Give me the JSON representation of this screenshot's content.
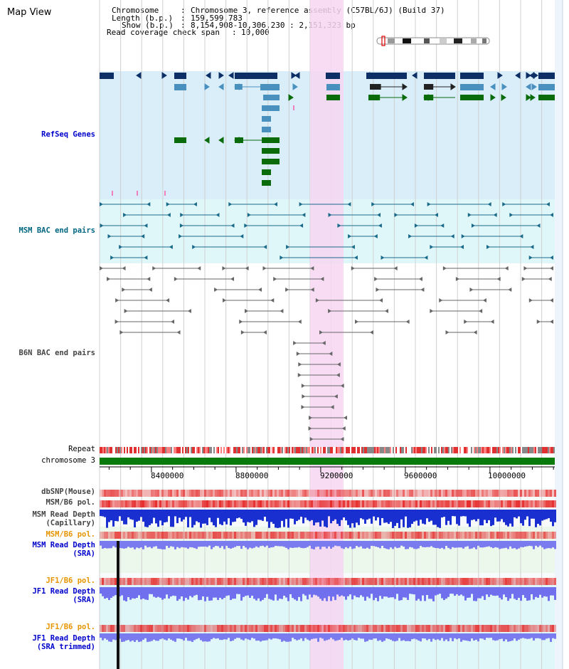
{
  "title": "Map View",
  "header": {
    "chromosome_label": "Chromosome",
    "chromosome_value": "Chromosome 3, reference assembly (C57BL/6J) (Build 37)",
    "length_label": "Length (b.p.)",
    "length_value": "159,599,783",
    "show_label": "Show (b.p.)",
    "show_value": "8,154,908-10,306,230 : 2,151,323 bp",
    "coverage_label": "Read coverage check span",
    "coverage_value": "10,000"
  },
  "tracks": {
    "refseq": "RefSeq Genes",
    "msm_bac": "MSM BAC end pairs",
    "b6n_bac": "B6N BAC end pairs",
    "repeat": "Repeat",
    "chromosome": "chromosome 3",
    "dbsnp": "dbSNP(Mouse)",
    "msm_pol_1": "MSM/B6 pol.",
    "msm_depth_cap_1": "MSM Read Depth",
    "msm_depth_cap_2": "(Capillary)",
    "msm_pol_2": "MSM/B6 pol.",
    "msm_depth_sra_1": "MSM Read Depth",
    "msm_depth_sra_2": "(SRA)",
    "jf1_pol_1": "JF1/B6 pol.",
    "jf1_depth_sra_1": "JF1 Read Depth",
    "jf1_depth_sra_2": "(SRA)",
    "jf1_pol_2": "JF1/B6 pol.",
    "jf1_depth_trim_1": "JF1 Read Depth",
    "jf1_depth_trim_2": "(SRA trimmed)"
  },
  "axis": {
    "ticks": [
      "8400000",
      "8800000",
      "9200000",
      "9600000",
      "10000000"
    ],
    "tick_values": [
      8400000,
      8800000,
      9200000,
      9600000,
      10000000
    ],
    "range": [
      8154908,
      10306230
    ]
  },
  "colors": {
    "refseq_bg": "#d9eef9",
    "msm_bg": "#e0f7fa",
    "highlight": "#f7d6f2",
    "gene_dark": "#0d2f66",
    "gene_mid": "#4a90bf",
    "gene_green": "#0a6b0a",
    "bac_teal": "#1a6a8a",
    "bac_gray": "#666666",
    "chrom_green": "#0a7a0a"
  }
}
